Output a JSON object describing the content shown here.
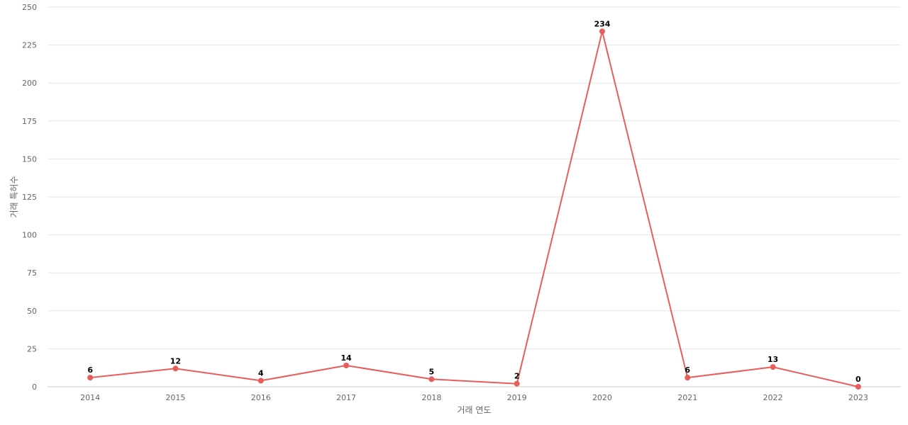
{
  "chart_data": {
    "type": "line",
    "title": "",
    "xlabel": "거래 연도",
    "ylabel": "거래 특허수",
    "categories": [
      "2014",
      "2015",
      "2016",
      "2017",
      "2018",
      "2019",
      "2020",
      "2021",
      "2022",
      "2023"
    ],
    "series": [
      {
        "values": [
          6,
          12,
          4,
          14,
          5,
          2,
          234,
          6,
          13,
          0
        ],
        "color": "#e85c5c"
      }
    ],
    "ylim": [
      0,
      250
    ],
    "yticks": [
      0,
      25,
      50,
      75,
      100,
      125,
      150,
      175,
      200,
      225,
      250
    ],
    "grid": true,
    "legend": "none",
    "data_labels": true
  }
}
